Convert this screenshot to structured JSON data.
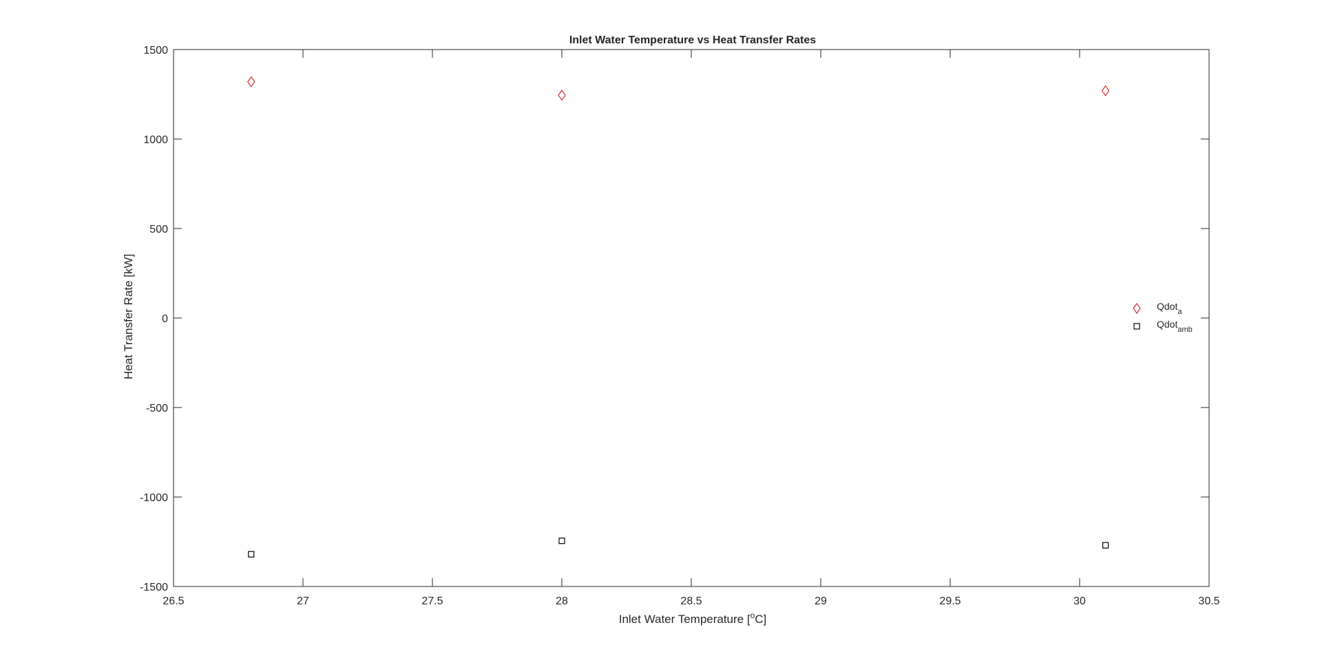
{
  "chart_data": {
    "type": "scatter",
    "title": "Inlet Water Temperature vs Heat Transfer Rates",
    "xlabel": "Inlet Water Temperature [",
    "xlabel_sup": "o",
    "xlabel_end": "C]",
    "ylabel": "Heat Transfer Rate [kW]",
    "xlim": [
      26.5,
      30.5
    ],
    "ylim": [
      -1500,
      1500
    ],
    "xticks": [
      26.5,
      27,
      27.5,
      28,
      28.5,
      29,
      29.5,
      30,
      30.5
    ],
    "xtick_labels": [
      "26.5",
      "27",
      "27.5",
      "28",
      "28.5",
      "29",
      "29.5",
      "30",
      "30.5"
    ],
    "yticks": [
      -1500,
      -1000,
      -500,
      0,
      500,
      1000,
      1500
    ],
    "ytick_labels": [
      "-1500",
      "-1000",
      "-500",
      "0",
      "500",
      "1000",
      "1500"
    ],
    "grid": false,
    "legend_position": "right",
    "series": [
      {
        "name": "Qdot",
        "name_sub": "a",
        "marker": "diamond",
        "color": "#d62728",
        "x": [
          26.8,
          28.0,
          30.1
        ],
        "y": [
          1320,
          1245,
          1270
        ]
      },
      {
        "name": "Qdot",
        "name_sub": "amb",
        "marker": "square",
        "color": "#000000",
        "x": [
          26.8,
          28.0,
          30.1
        ],
        "y": [
          -1320,
          -1245,
          -1270
        ]
      }
    ]
  }
}
